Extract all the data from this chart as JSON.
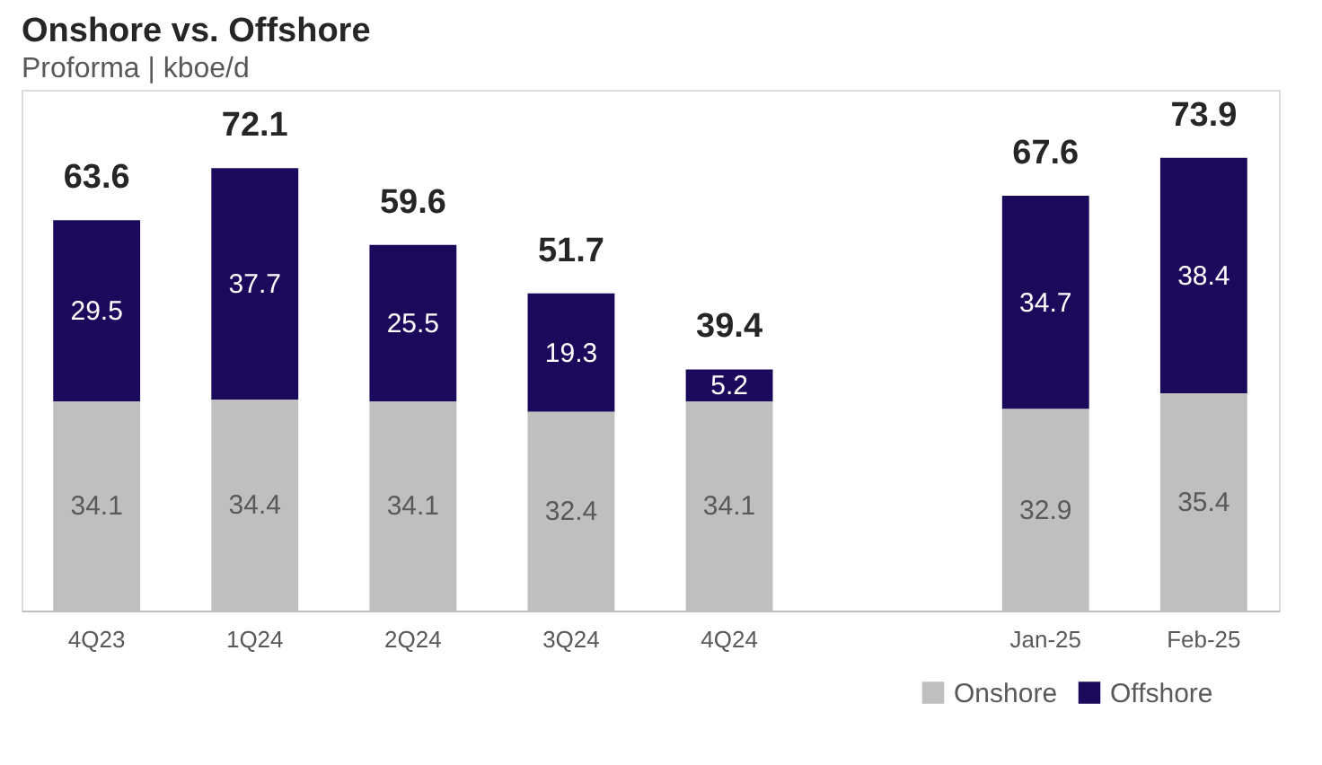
{
  "chart_data": {
    "type": "bar",
    "title": "Onshore vs. Offshore",
    "subtitle": "Proforma | kboe/d",
    "categories": [
      "4Q23",
      "1Q24",
      "2Q24",
      "3Q24",
      "4Q24",
      null,
      "Jan-25",
      "Feb-25"
    ],
    "stacked": true,
    "series": [
      {
        "name": "Onshore",
        "color": "#bfbfbf",
        "values": [
          34.1,
          34.4,
          34.1,
          32.4,
          34.1,
          null,
          32.9,
          35.4
        ]
      },
      {
        "name": "Offshore",
        "color": "#1b0a5c",
        "values": [
          29.5,
          37.7,
          25.5,
          19.3,
          5.2,
          null,
          34.7,
          38.4
        ]
      }
    ],
    "totals": [
      "63.6",
      "72.1",
      "59.6",
      "51.7",
      "39.4",
      null,
      "67.6",
      "73.9"
    ],
    "data_labels": true,
    "legend": "bottom right",
    "grid": false
  }
}
